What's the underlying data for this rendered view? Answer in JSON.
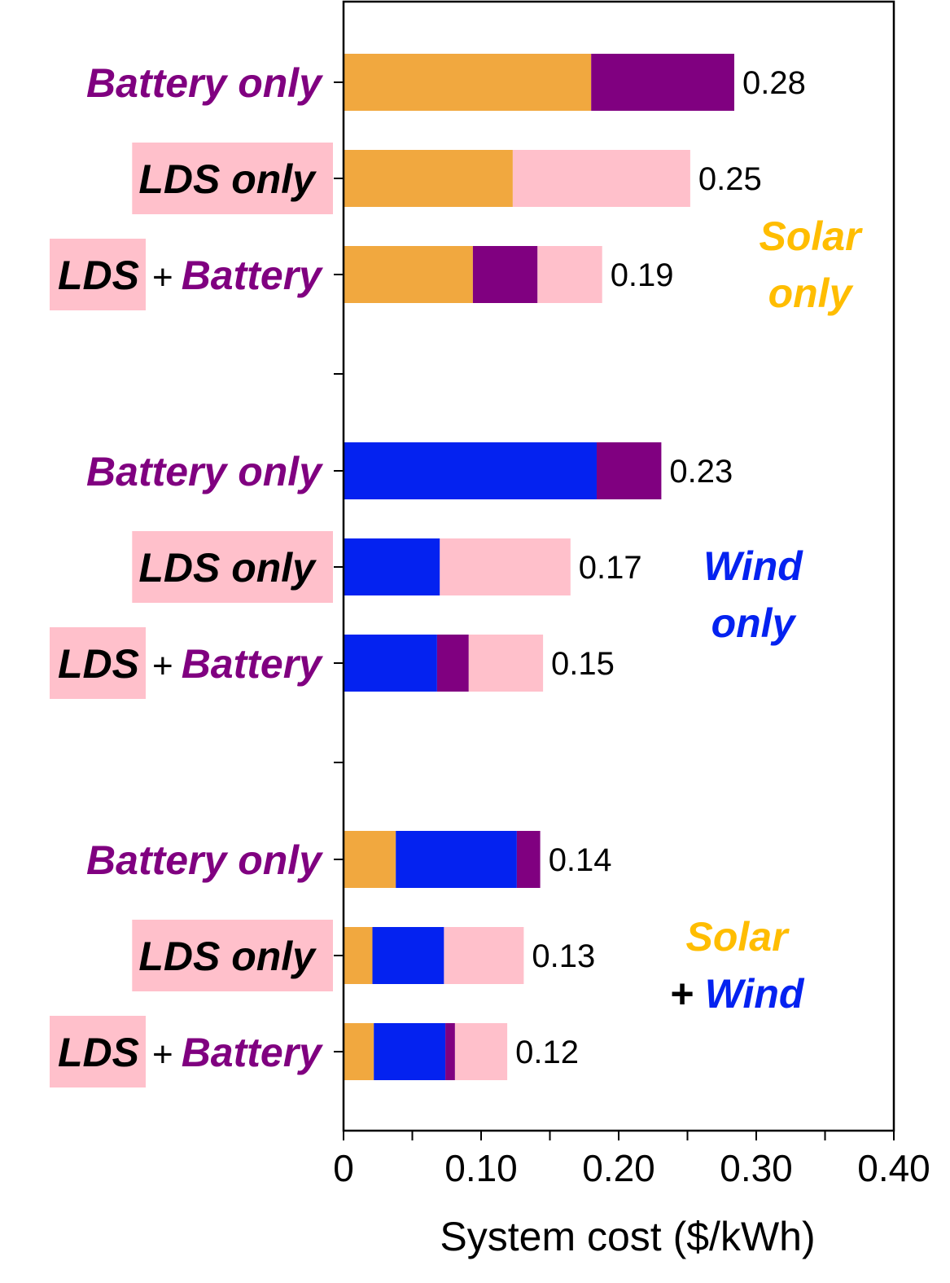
{
  "colors": {
    "solar": "#F1A83F",
    "wind": "#0422F0",
    "battery": "#800080",
    "lds": "#FFC0CB",
    "solar_text": "#FFBD00",
    "wind_text": "#0422F0",
    "battery_text": "#800080",
    "lds_highlight": "#FFC0CB"
  },
  "chart_data": {
    "type": "bar",
    "orientation": "horizontal",
    "stacked": true,
    "xlabel": "System cost ($/kWh)",
    "xlim": [
      0,
      0.4
    ],
    "xticks": [
      "0",
      "0.10",
      "0.20",
      "0.30",
      "0.40"
    ],
    "xtick_values": [
      0,
      0.1,
      0.2,
      0.3,
      0.4
    ],
    "grid": false,
    "legend": "none",
    "components": [
      "solar",
      "wind",
      "battery",
      "lds"
    ],
    "groups": [
      {
        "label_lines": [
          [
            {
              "text": "Solar",
              "color": "solar_text"
            }
          ],
          [
            {
              "text": "only",
              "color": "solar_text"
            }
          ]
        ],
        "bars": [
          {
            "label_kind": "battery_only",
            "label_parts": [
              "Battery only"
            ],
            "segments": {
              "solar": 0.18,
              "wind": 0,
              "battery": 0.104,
              "lds": 0
            },
            "total_label": "0.28"
          },
          {
            "label_kind": "lds_only",
            "label_parts": [
              "LDS only"
            ],
            "segments": {
              "solar": 0.123,
              "wind": 0,
              "battery": 0,
              "lds": 0.129
            },
            "total_label": "0.25"
          },
          {
            "label_kind": "lds_battery",
            "label_parts": [
              "LDS",
              "+",
              "Battery"
            ],
            "segments": {
              "solar": 0.094,
              "wind": 0,
              "battery": 0.047,
              "lds": 0.047
            },
            "total_label": "0.19"
          }
        ]
      },
      {
        "label_lines": [
          [
            {
              "text": "Wind",
              "color": "wind_text"
            }
          ],
          [
            {
              "text": "only",
              "color": "wind_text"
            }
          ]
        ],
        "bars": [
          {
            "label_kind": "battery_only",
            "label_parts": [
              "Battery only"
            ],
            "segments": {
              "solar": 0,
              "wind": 0.184,
              "battery": 0.047,
              "lds": 0
            },
            "total_label": "0.23"
          },
          {
            "label_kind": "lds_only",
            "label_parts": [
              "LDS only"
            ],
            "segments": {
              "solar": 0,
              "wind": 0.07,
              "battery": 0,
              "lds": 0.095
            },
            "total_label": "0.17"
          },
          {
            "label_kind": "lds_battery",
            "label_parts": [
              "LDS",
              "+",
              "Battery"
            ],
            "segments": {
              "solar": 0,
              "wind": 0.068,
              "battery": 0.023,
              "lds": 0.054
            },
            "total_label": "0.15"
          }
        ]
      },
      {
        "label_lines": [
          [
            {
              "text": "Solar",
              "color": "solar_text"
            }
          ],
          [
            {
              "text": "+",
              "color": "#000000"
            },
            {
              "text": "Wind",
              "color": "wind_text"
            }
          ]
        ],
        "bars": [
          {
            "label_kind": "battery_only",
            "label_parts": [
              "Battery only"
            ],
            "segments": {
              "solar": 0.038,
              "wind": 0.088,
              "battery": 0.017,
              "lds": 0
            },
            "total_label": "0.14"
          },
          {
            "label_kind": "lds_only",
            "label_parts": [
              "LDS only"
            ],
            "segments": {
              "solar": 0.021,
              "wind": 0.052,
              "battery": 0,
              "lds": 0.058
            },
            "total_label": "0.13"
          },
          {
            "label_kind": "lds_battery",
            "label_parts": [
              "LDS",
              "+",
              "Battery"
            ],
            "segments": {
              "solar": 0.022,
              "wind": 0.052,
              "battery": 0.007,
              "lds": 0.038
            },
            "total_label": "0.12"
          }
        ]
      }
    ]
  }
}
